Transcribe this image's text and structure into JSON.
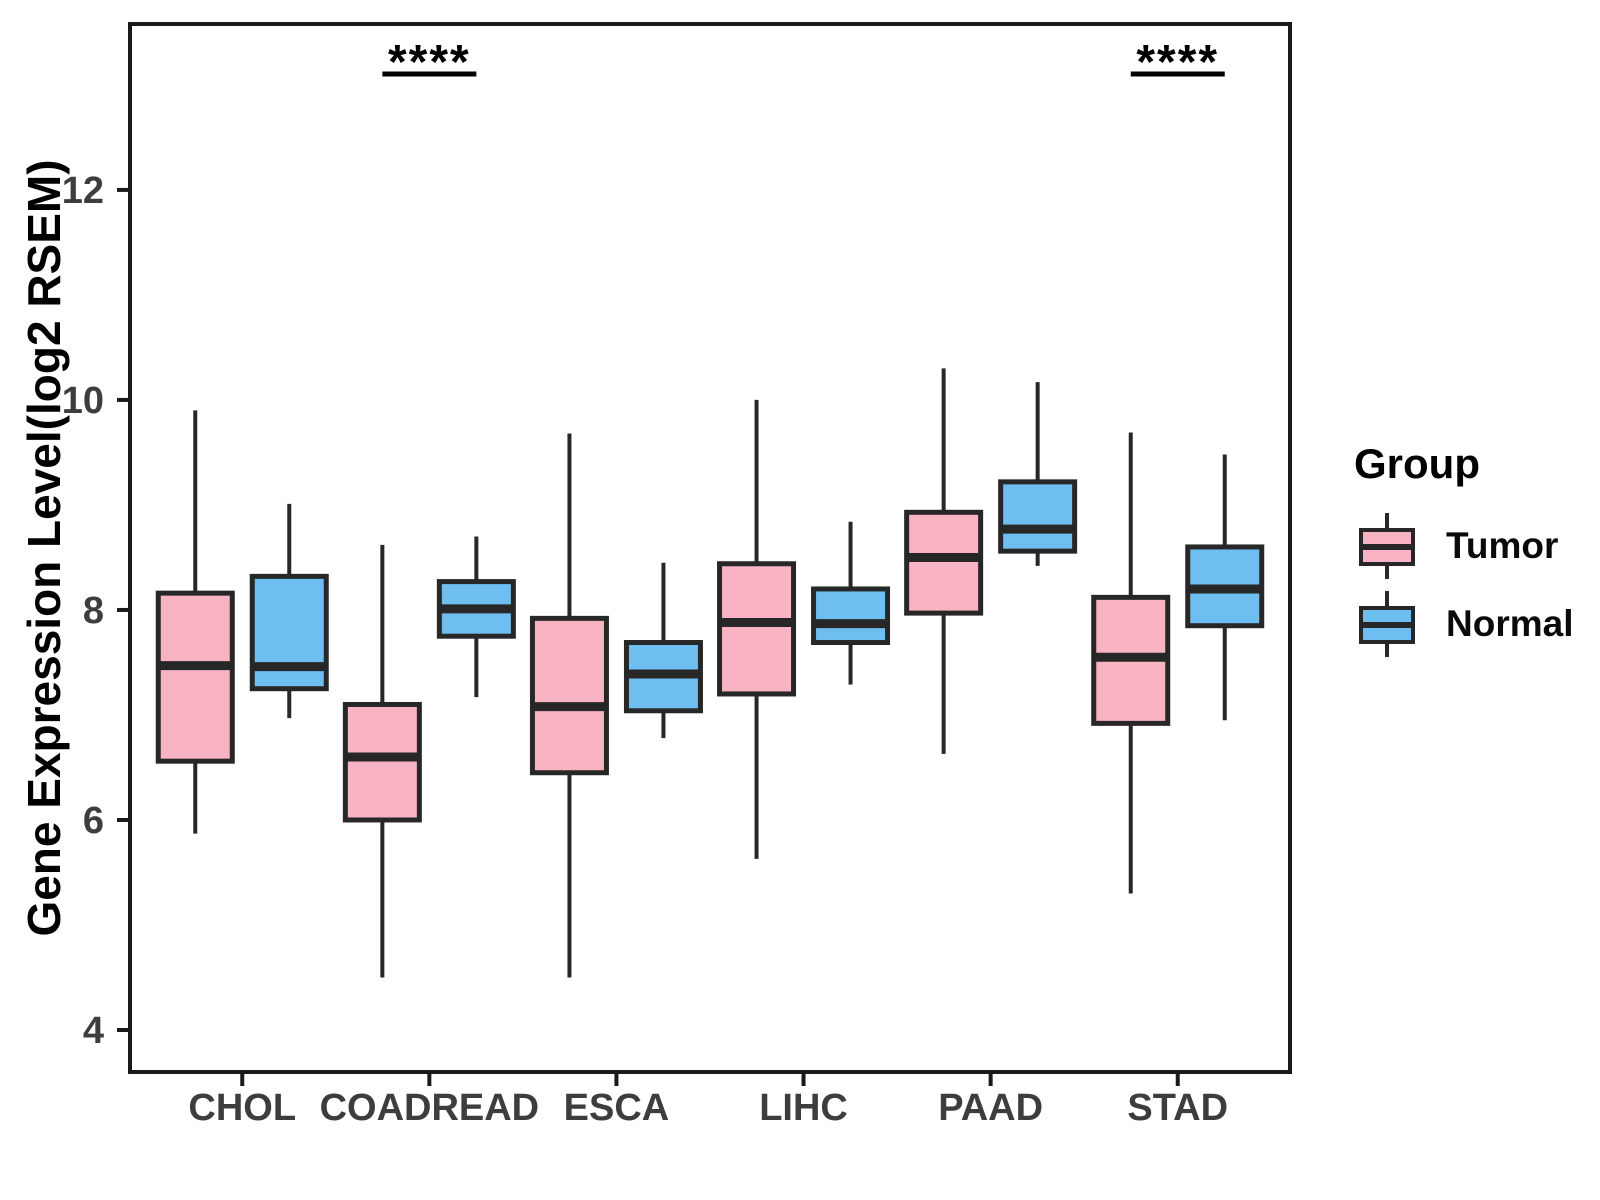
{
  "figure": {
    "yaxis": {
      "title": "Gene Expression Level(log2 RSEM)",
      "tick_labels": [
        "4",
        "6",
        "8",
        "10",
        "12"
      ]
    },
    "legend": {
      "title": "Group",
      "items": [
        {
          "label": "Tumor",
          "color": "#F9B4C4"
        },
        {
          "label": "Normal",
          "color": "#6FBEF2"
        }
      ]
    },
    "colors": {
      "box_stroke": "#272727",
      "panel_border": "#1a1a1a",
      "axis_text": "#3d3d3d",
      "significance_text": "#000000"
    }
  },
  "chart_data": {
    "type": "grouped_boxplot",
    "title": "",
    "xlabel": "",
    "ylabel": "Gene Expression Level(log2 RSEM)",
    "categories": [
      "CHOL",
      "COADREAD",
      "ESCA",
      "LIHC",
      "PAAD",
      "STAD"
    ],
    "yticks": [
      4,
      6,
      8,
      10,
      12
    ],
    "ylim": [
      3.6,
      13.58
    ],
    "legend_position": "right",
    "grid": false,
    "series": [
      {
        "name": "Tumor",
        "color": "#F9B4C4",
        "values": [
          {
            "low": 5.87,
            "q1": 6.56,
            "median": 7.47,
            "q3": 8.16,
            "high": 9.9
          },
          {
            "low": 4.5,
            "q1": 6.0,
            "median": 6.6,
            "q3": 7.1,
            "high": 8.62
          },
          {
            "low": 4.5,
            "q1": 6.45,
            "median": 7.08,
            "q3": 7.92,
            "high": 9.68
          },
          {
            "low": 5.63,
            "q1": 7.2,
            "median": 7.88,
            "q3": 8.44,
            "high": 10.0
          },
          {
            "low": 6.63,
            "q1": 7.97,
            "median": 8.5,
            "q3": 8.93,
            "high": 10.3
          },
          {
            "low": 5.3,
            "q1": 6.92,
            "median": 7.55,
            "q3": 8.12,
            "high": 9.69
          }
        ]
      },
      {
        "name": "Normal",
        "color": "#6FBEF2",
        "values": [
          {
            "low": 6.97,
            "q1": 7.25,
            "median": 7.46,
            "q3": 8.32,
            "high": 9.01
          },
          {
            "low": 7.17,
            "q1": 7.75,
            "median": 8.01,
            "q3": 8.27,
            "high": 8.7
          },
          {
            "low": 6.78,
            "q1": 7.04,
            "median": 7.39,
            "q3": 7.69,
            "high": 8.45
          },
          {
            "low": 7.29,
            "q1": 7.69,
            "median": 7.87,
            "q3": 8.2,
            "high": 8.84
          },
          {
            "low": 8.42,
            "q1": 8.56,
            "median": 8.77,
            "q3": 9.22,
            "high": 10.17
          },
          {
            "low": 6.95,
            "q1": 7.85,
            "median": 8.2,
            "q3": 8.6,
            "high": 9.48
          }
        ]
      }
    ],
    "significance": [
      {
        "category": "COADREAD",
        "label": "****"
      },
      {
        "category": "STAD",
        "label": "****"
      }
    ]
  }
}
